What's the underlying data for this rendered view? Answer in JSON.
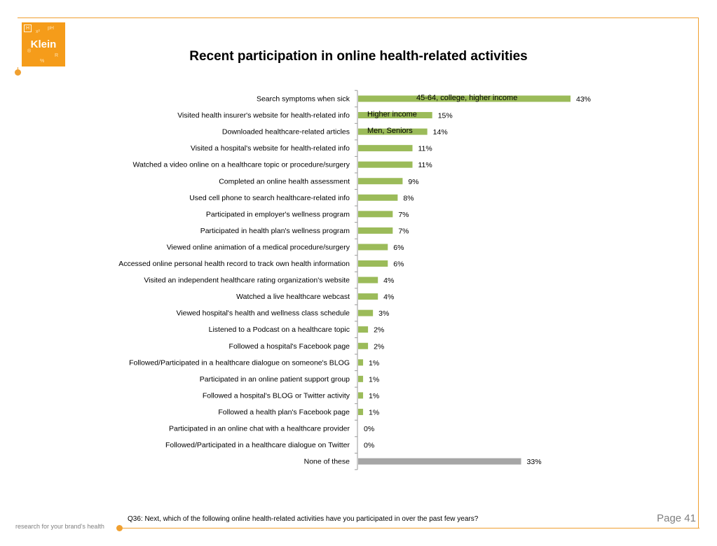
{
  "logo": {
    "name": "Klein",
    "box_letter": "H"
  },
  "title": "Recent participation in online health-related activities",
  "footnote": "Q36: Next, which of the following online health-related activities have you participated in over the past few years?",
  "page_label": "Page 41",
  "tagline": "research for your brand’s health",
  "colors": {
    "accent": "#f0a030",
    "bar": "#9bbb59",
    "bar_none": "#a6a6a6"
  },
  "chart_data": {
    "type": "bar",
    "orientation": "horizontal",
    "title": "Recent participation in online health-related activities",
    "xlabel": "",
    "ylabel": "",
    "xlim": [
      0,
      50
    ],
    "grid": false,
    "categories": [
      "Search symptoms when sick",
      "Visited health insurer's website for health-related info",
      "Downloaded healthcare-related articles",
      "Visited a hospital's website for health-related info",
      "Watched a video online on a healthcare topic or procedure/surgery",
      "Completed an online health assessment",
      "Used cell phone  to search healthcare-related info",
      "Participated in employer's wellness program",
      "Participated in health plan's wellness program",
      "Viewed online animation of a medical procedure/surgery",
      "Accessed online personal health record to track own health information",
      "Visited an independent healthcare rating organization's website",
      "Watched a live healthcare webcast",
      "Viewed hospital's health and wellness class schedule",
      "Listened to a Podcast on a healthcare topic",
      "Followed a hospital's Facebook page",
      "Followed/Participated in a healthcare dialogue on someone's BLOG",
      "Participated in an online patient support group",
      "Followed a hospital's BLOG or Twitter activity",
      "Followed a health plan's Facebook page",
      "Participated in an online chat with a healthcare provider",
      "Followed/Participated in a healthcare dialogue on Twitter",
      "None of these"
    ],
    "values": [
      43,
      15,
      14,
      11,
      11,
      9,
      8,
      7,
      7,
      6,
      6,
      4,
      4,
      3,
      2,
      2,
      1,
      1,
      1,
      1,
      0,
      0,
      33
    ],
    "value_labels": [
      "43%",
      "15%",
      "14%",
      "11%",
      "11%",
      "9%",
      "8%",
      "7%",
      "7%",
      "6%",
      "6%",
      "4%",
      "4%",
      "3%",
      "2%",
      "2%",
      "1%",
      "1%",
      "1%",
      "1%",
      "0%",
      "0%",
      "33%"
    ],
    "highlight_index": 22,
    "annotations": [
      {
        "index": 0,
        "text": "45-64, college, higher income"
      },
      {
        "index": 1,
        "text": "Higher income"
      },
      {
        "index": 2,
        "text": "Men, Seniors"
      }
    ]
  }
}
